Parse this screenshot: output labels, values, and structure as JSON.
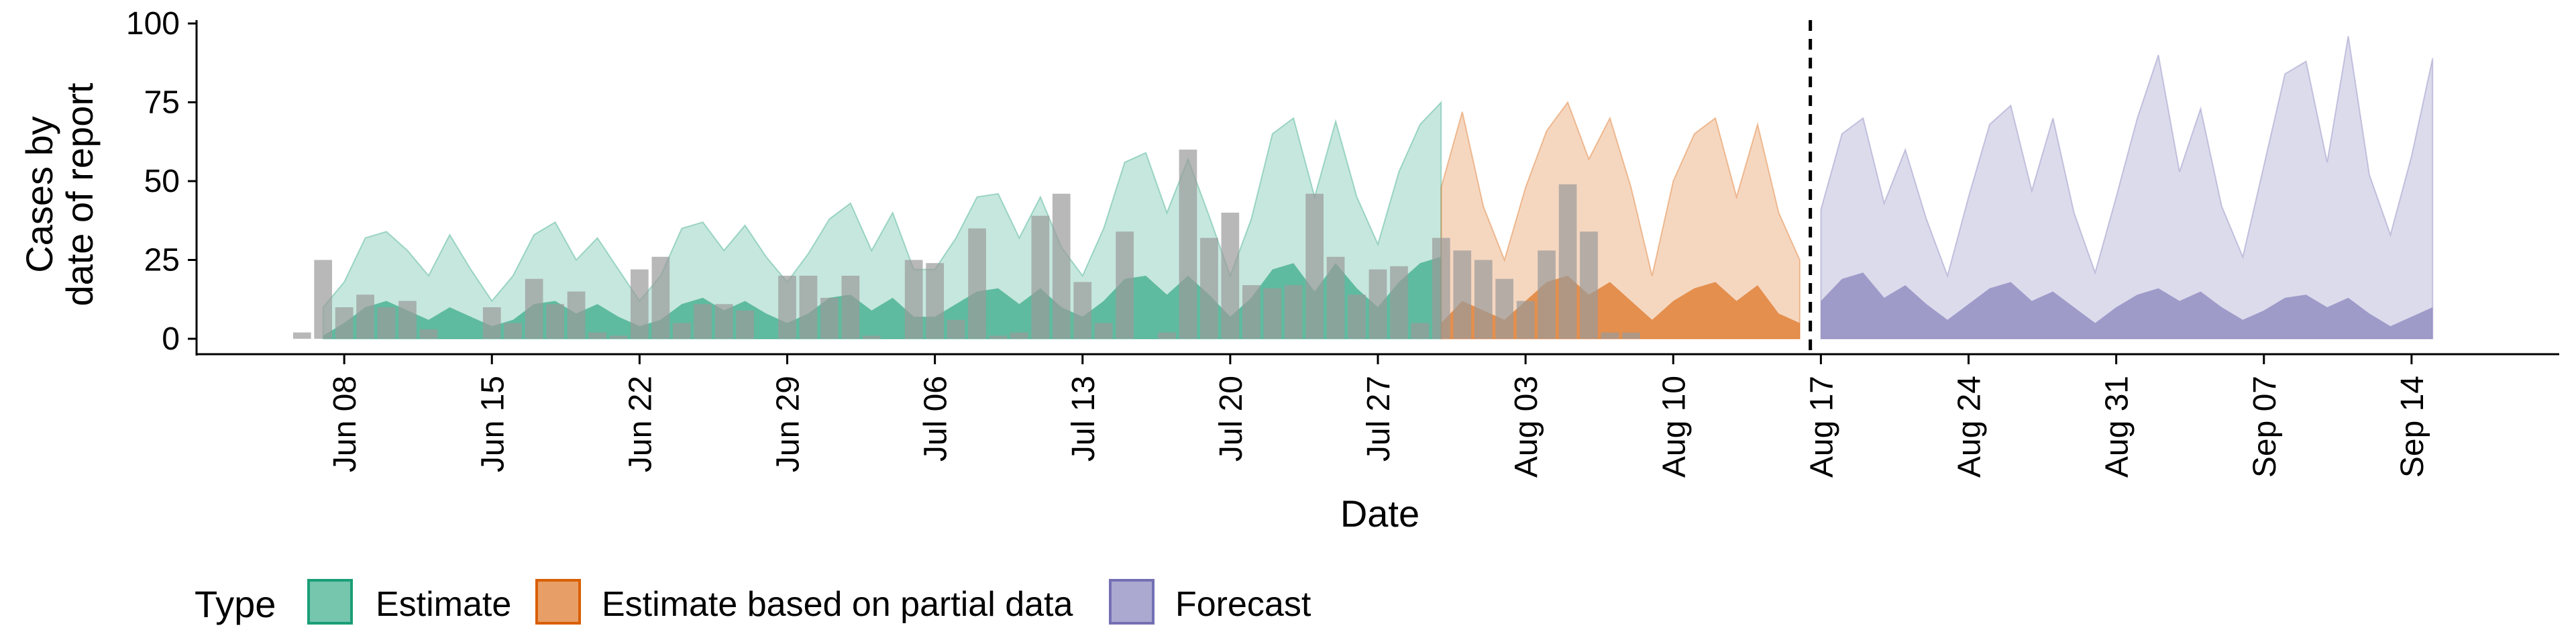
{
  "chart_data": {
    "type": "area",
    "xlabel": "Date",
    "ylabel_lines": [
      "Cases by",
      "date of report"
    ],
    "ylim": [
      0,
      100
    ],
    "y_ticks": [
      0,
      25,
      50,
      75,
      100
    ],
    "x_domain": [
      "2020-06-01",
      "2020-09-21"
    ],
    "x_ticks": [
      {
        "date": "2020-06-08",
        "label": "Jun 08"
      },
      {
        "date": "2020-06-15",
        "label": "Jun 15"
      },
      {
        "date": "2020-06-22",
        "label": "Jun 22"
      },
      {
        "date": "2020-06-29",
        "label": "Jun 29"
      },
      {
        "date": "2020-07-06",
        "label": "Jul 06"
      },
      {
        "date": "2020-07-13",
        "label": "Jul 13"
      },
      {
        "date": "2020-07-20",
        "label": "Jul 20"
      },
      {
        "date": "2020-07-27",
        "label": "Jul 27"
      },
      {
        "date": "2020-08-03",
        "label": "Aug 03"
      },
      {
        "date": "2020-08-10",
        "label": "Aug 10"
      },
      {
        "date": "2020-08-17",
        "label": "Aug 17"
      },
      {
        "date": "2020-08-24",
        "label": "Aug 24"
      },
      {
        "date": "2020-08-31",
        "label": "Aug 31"
      },
      {
        "date": "2020-09-07",
        "label": "Sep 07"
      },
      {
        "date": "2020-09-14",
        "label": "Sep 14"
      }
    ],
    "forecast_line_date": "2020-08-16",
    "grid": false,
    "legend": {
      "title": "Type",
      "placement": "bottom",
      "entries": [
        {
          "label": "Estimate",
          "color": "#1b9e77"
        },
        {
          "label": "Estimate based on partial data",
          "color": "#d95f02"
        },
        {
          "label": "Forecast",
          "color": "#7570b3"
        }
      ]
    },
    "observed_bar_color": "#9a9a9a",
    "series": [
      {
        "type_label": "Estimate",
        "color": "#1b9e77",
        "start_date": "2020-06-07",
        "upper": [
          10,
          18,
          32,
          34,
          28,
          20,
          33,
          22,
          12,
          20,
          33,
          37,
          25,
          32,
          22,
          12,
          20,
          35,
          37,
          28,
          36,
          26,
          18,
          27,
          38,
          43,
          28,
          40,
          22,
          22,
          32,
          45,
          46,
          32,
          45,
          29,
          20,
          35,
          56,
          59,
          40,
          57,
          39,
          20,
          38,
          65,
          70,
          45,
          69,
          45,
          30,
          53,
          68,
          75
        ],
        "median": [
          1,
          5,
          10,
          12,
          9,
          6,
          10,
          7,
          4,
          6,
          11,
          12,
          8,
          11,
          7,
          4,
          6,
          11,
          13,
          9,
          12,
          8,
          5,
          8,
          13,
          14,
          9,
          13,
          7,
          7,
          11,
          15,
          16,
          11,
          16,
          10,
          7,
          12,
          19,
          20,
          14,
          20,
          14,
          7,
          13,
          22,
          24,
          15,
          24,
          16,
          10,
          18,
          24,
          26
        ],
        "lower": [
          0,
          0,
          0,
          0,
          0,
          0,
          0,
          0,
          0,
          0,
          0,
          0,
          0,
          0,
          0,
          0,
          0,
          0,
          0,
          0,
          0,
          0,
          0,
          0,
          0,
          0,
          0,
          0,
          0,
          0,
          0,
          0,
          0,
          0,
          0,
          0,
          0,
          0,
          0,
          0,
          0,
          0,
          0,
          0,
          0,
          0,
          0,
          0,
          0,
          0,
          0,
          0,
          0,
          0
        ]
      },
      {
        "type_label": "Estimate based on partial data",
        "color": "#d95f02",
        "start_date": "2020-07-30",
        "upper": [
          48,
          72,
          42,
          25,
          48,
          66,
          75,
          57,
          70,
          48,
          20,
          50,
          65,
          70,
          45,
          68,
          40,
          25
        ],
        "median": [
          5,
          12,
          9,
          6,
          12,
          18,
          20,
          14,
          18,
          12,
          6,
          12,
          16,
          18,
          12,
          17,
          8,
          5
        ],
        "lower": [
          0,
          0,
          0,
          0,
          0,
          0,
          0,
          0,
          0,
          0,
          0,
          0,
          0,
          0,
          0,
          0,
          0,
          0
        ]
      },
      {
        "type_label": "Forecast",
        "color": "#7570b3",
        "start_date": "2020-08-17",
        "upper": [
          41,
          65,
          70,
          43,
          60,
          38,
          20,
          45,
          68,
          74,
          47,
          70,
          40,
          21,
          45,
          70,
          90,
          53,
          73,
          42,
          26,
          55,
          84,
          88,
          56,
          96,
          52,
          33,
          58,
          89
        ],
        "median": [
          12,
          19,
          21,
          13,
          17,
          11,
          6,
          11,
          16,
          18,
          12,
          15,
          10,
          5,
          10,
          14,
          16,
          12,
          15,
          10,
          6,
          9,
          13,
          14,
          10,
          13,
          8,
          4,
          7,
          10
        ],
        "lower": [
          0,
          0,
          0,
          0,
          0,
          0,
          0,
          0,
          0,
          0,
          0,
          0,
          0,
          0,
          0,
          0,
          0,
          0,
          0,
          0,
          0,
          0,
          0,
          0,
          0,
          0,
          0,
          0,
          0,
          0
        ]
      }
    ],
    "observed": {
      "start_date": "2020-06-06",
      "values": [
        2,
        25,
        10,
        14,
        10,
        12,
        3,
        0,
        0,
        10,
        5,
        19,
        11,
        15,
        2,
        1,
        22,
        26,
        5,
        11,
        11,
        9,
        0,
        20,
        20,
        13,
        20,
        1,
        0,
        25,
        24,
        6,
        35,
        1,
        2,
        39,
        46,
        18,
        5,
        34,
        0,
        2,
        60,
        32,
        40,
        17,
        16,
        17,
        46,
        26,
        14,
        22,
        23,
        5,
        32,
        28,
        25,
        19,
        12,
        28,
        49,
        34,
        2,
        2
      ]
    }
  }
}
